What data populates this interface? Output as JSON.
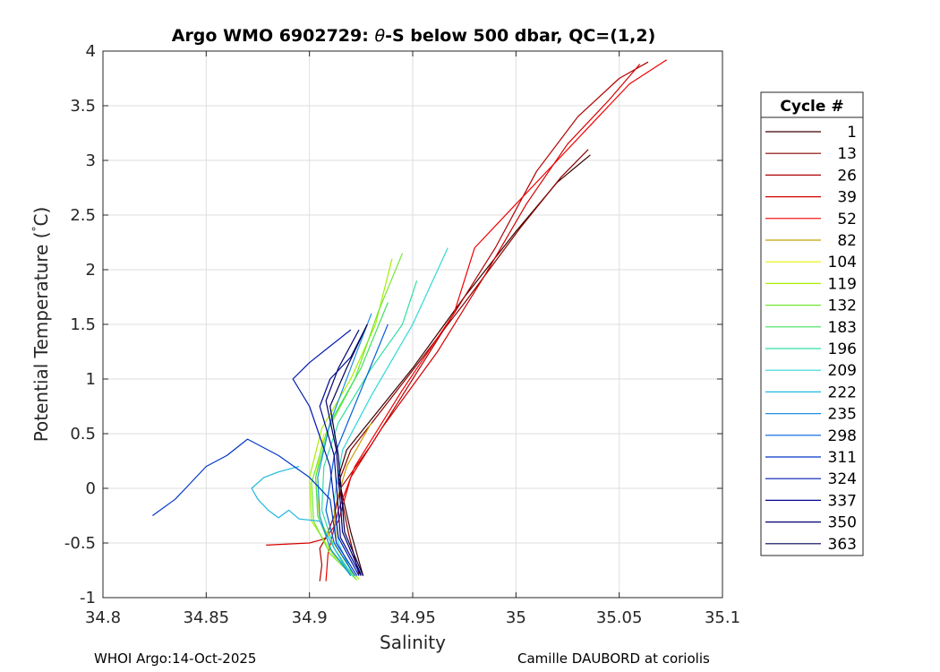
{
  "chart_data": {
    "type": "line",
    "title": "Argo WMO 6902729: θ-S below 500 dbar,  QC=(1,2)",
    "title_prefix": "Argo WMO 6902729: ",
    "title_symbol": "θ",
    "title_suffix": "-S below 500 dbar,  QC=(1,2)",
    "xlabel": "Salinity",
    "ylabel_main": "Potential Temperature (",
    "ylabel_degree": "°",
    "ylabel_unit": "C)",
    "xlim": [
      34.8,
      35.1
    ],
    "ylim": [
      -1,
      4
    ],
    "x_ticks": [
      34.8,
      34.85,
      34.9,
      34.95,
      35,
      35.05,
      35.1
    ],
    "x_tick_labels": [
      "34.8",
      "34.85",
      "34.9",
      "34.95",
      "35",
      "35.05",
      "35.1"
    ],
    "y_ticks": [
      -1,
      -0.5,
      0,
      0.5,
      1,
      1.5,
      2,
      2.5,
      3,
      3.5,
      4
    ],
    "y_tick_labels": [
      "-1",
      "-0.5",
      "0",
      "0.5",
      "1",
      "1.5",
      "2",
      "2.5",
      "3",
      "3.5",
      "4"
    ],
    "grid": true,
    "legend_position": "outside-right",
    "legend_title": "Cycle #",
    "series": [
      {
        "name": "1",
        "color": "#3a0000",
        "x": [
          34.926,
          34.92,
          34.914,
          34.918,
          34.95,
          34.975,
          35.0,
          35.02,
          35.036
        ],
        "y": [
          -0.8,
          -0.4,
          0.1,
          0.35,
          1.1,
          1.75,
          2.35,
          2.8,
          3.05
        ]
      },
      {
        "name": "13",
        "color": "#8a0000",
        "x": [
          34.924,
          34.919,
          34.914,
          34.92,
          34.95,
          34.976,
          35.002,
          35.022,
          35.035
        ],
        "y": [
          -0.79,
          -0.42,
          0.05,
          0.35,
          1.08,
          1.72,
          2.38,
          2.85,
          3.1
        ]
      },
      {
        "name": "26",
        "color": "#b00000",
        "x": [
          34.905,
          34.906,
          34.905,
          34.908,
          34.912,
          34.915,
          34.93,
          34.96,
          34.99,
          35.01,
          35.03,
          35.05,
          35.064
        ],
        "y": [
          -0.85,
          -0.7,
          -0.55,
          -0.45,
          -0.25,
          0.0,
          0.4,
          1.3,
          2.2,
          2.9,
          3.4,
          3.75,
          3.9
        ]
      },
      {
        "name": "39",
        "color": "#d40000",
        "x": [
          34.879,
          34.9,
          34.906,
          34.908,
          34.914,
          34.92,
          34.935,
          34.962,
          34.985,
          35.005,
          35.025,
          35.045,
          35.06
        ],
        "y": [
          -0.52,
          -0.5,
          -0.47,
          -0.45,
          -0.3,
          0.1,
          0.55,
          1.25,
          1.95,
          2.6,
          3.15,
          3.55,
          3.88
        ]
      },
      {
        "name": "52",
        "color": "#f00000",
        "x": [
          34.908,
          34.909,
          34.914,
          34.922,
          34.945,
          34.97,
          34.98,
          35.0,
          35.02,
          35.04,
          35.055,
          35.073
        ],
        "y": [
          -0.85,
          -0.6,
          -0.2,
          0.2,
          0.9,
          1.6,
          2.2,
          2.6,
          3.0,
          3.4,
          3.7,
          3.92
        ]
      },
      {
        "name": "82",
        "color": "#c8a000",
        "x": [
          34.913,
          34.912,
          34.918,
          34.93
        ],
        "y": [
          -0.5,
          -0.2,
          0.2,
          0.6
        ]
      },
      {
        "name": "104",
        "color": "#e8f000",
        "x": [
          34.922,
          34.915,
          34.905,
          34.903,
          34.907
        ],
        "y": [
          -0.8,
          -0.6,
          -0.3,
          0.1,
          0.5
        ]
      },
      {
        "name": "119",
        "color": "#a8f000",
        "x": [
          34.924,
          34.912,
          34.901,
          34.9,
          34.906,
          34.92,
          34.932,
          34.94
        ],
        "y": [
          -0.83,
          -0.62,
          -0.3,
          0.1,
          0.55,
          1.0,
          1.5,
          2.1
        ]
      },
      {
        "name": "132",
        "color": "#70e830",
        "x": [
          34.923,
          34.91,
          34.902,
          34.901,
          34.908,
          34.922,
          34.933,
          34.945
        ],
        "y": [
          -0.84,
          -0.6,
          -0.3,
          0.05,
          0.5,
          1.0,
          1.6,
          2.15
        ]
      },
      {
        "name": "183",
        "color": "#40e060",
        "x": [
          34.922,
          34.911,
          34.904,
          34.903,
          34.91,
          34.925,
          34.938
        ],
        "y": [
          -0.82,
          -0.58,
          -0.25,
          0.1,
          0.6,
          1.1,
          1.7
        ]
      },
      {
        "name": "196",
        "color": "#30e0a0",
        "x": [
          34.921,
          34.912,
          34.906,
          34.907,
          34.914,
          34.93,
          34.945,
          34.952
        ],
        "y": [
          -0.8,
          -0.55,
          -0.2,
          0.2,
          0.6,
          1.1,
          1.5,
          1.9
        ]
      },
      {
        "name": "209",
        "color": "#30d8d8",
        "x": [
          34.92,
          34.914,
          34.912,
          34.916,
          34.93,
          34.95,
          34.967
        ],
        "y": [
          -0.75,
          -0.5,
          -0.1,
          0.35,
          0.85,
          1.5,
          2.2
        ]
      },
      {
        "name": "222",
        "color": "#20b8e0",
        "x": [
          34.92,
          34.912,
          34.905,
          34.895,
          34.89,
          34.885,
          34.88,
          34.875,
          34.872,
          34.878,
          34.885,
          34.895
        ],
        "y": [
          -0.8,
          -0.55,
          -0.3,
          -0.28,
          -0.2,
          -0.27,
          -0.2,
          -0.1,
          0.0,
          0.1,
          0.15,
          0.2
        ]
      },
      {
        "name": "235",
        "color": "#2090e0",
        "x": [
          34.92,
          34.91,
          34.905,
          34.904,
          34.91,
          34.92,
          34.93
        ],
        "y": [
          -0.8,
          -0.55,
          -0.25,
          0.1,
          0.6,
          1.1,
          1.6
        ]
      },
      {
        "name": "298",
        "color": "#0060d8",
        "x": [
          34.922,
          34.912,
          34.908,
          34.912,
          34.925,
          34.938
        ],
        "y": [
          -0.8,
          -0.5,
          -0.2,
          0.3,
          0.9,
          1.5
        ]
      },
      {
        "name": "311",
        "color": "#0038c8",
        "x": [
          34.923,
          34.913,
          34.91,
          34.9,
          34.885,
          34.87,
          34.86,
          34.85,
          34.84,
          34.835,
          34.824
        ],
        "y": [
          -0.8,
          -0.5,
          -0.1,
          0.1,
          0.3,
          0.45,
          0.3,
          0.2,
          0.0,
          -0.1,
          -0.25
        ]
      },
      {
        "name": "324",
        "color": "#0018b0",
        "x": [
          34.924,
          34.914,
          34.91,
          34.9,
          34.892,
          34.9,
          34.91,
          34.92
        ],
        "y": [
          -0.8,
          -0.45,
          0.2,
          0.75,
          1.0,
          1.15,
          1.3,
          1.45
        ]
      },
      {
        "name": "337",
        "color": "#000890",
        "x": [
          34.925,
          34.915,
          34.912,
          34.905,
          34.91,
          34.92,
          34.928
        ],
        "y": [
          -0.8,
          -0.45,
          0.3,
          0.75,
          1.0,
          1.2,
          1.5
        ]
      },
      {
        "name": "350",
        "color": "#000070",
        "x": [
          34.925,
          34.916,
          34.913,
          34.908,
          34.914,
          34.924
        ],
        "y": [
          -0.79,
          -0.4,
          0.35,
          0.8,
          1.1,
          1.45
        ]
      },
      {
        "name": "363",
        "color": "#000050",
        "x": [
          34.926,
          34.917,
          34.914,
          34.91,
          34.918,
          34.928
        ],
        "y": [
          -0.8,
          -0.4,
          0.3,
          0.75,
          1.1,
          1.5
        ]
      }
    ]
  },
  "footer": {
    "left": "WHOI Argo:14-Oct-2025",
    "right": "Camille DAUBORD at coriolis"
  }
}
